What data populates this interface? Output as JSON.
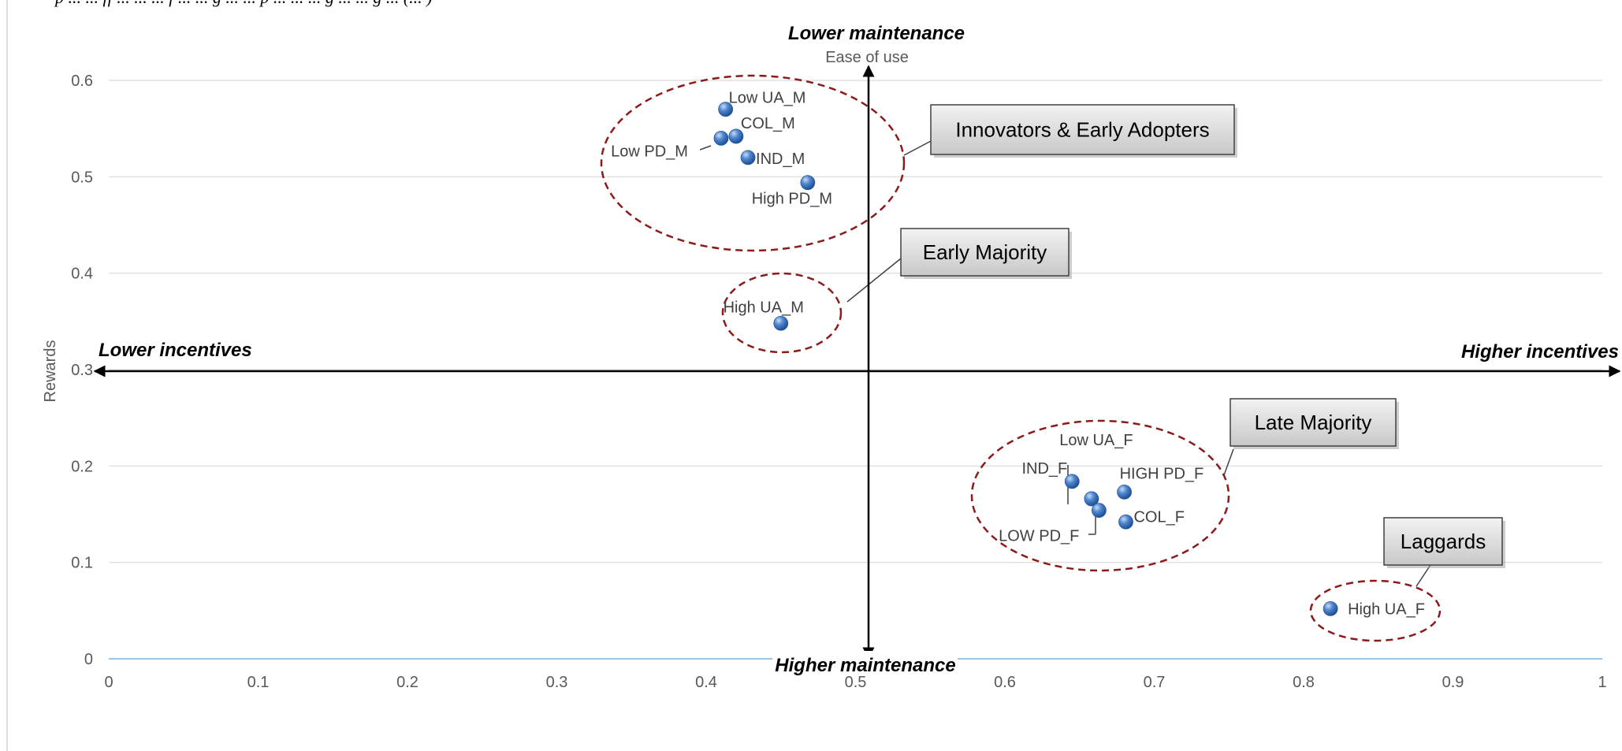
{
  "caption_top": "p ... ... ff ... ... ... f ... ... g ... ... p ... ... ... g ... ... g ... (... )",
  "chart_data": {
    "type": "scatter",
    "title": "",
    "xlabel": "",
    "ylabel": "Rewards",
    "xlim": [
      0,
      1
    ],
    "ylim": [
      0,
      0.6
    ],
    "x_ticks": [
      "0",
      "0.1",
      "0.2",
      "0.3",
      "0.4",
      "0.5",
      "0.6",
      "0.7",
      "0.8",
      "0.9",
      "1"
    ],
    "y_ticks": [
      "0",
      "0.1",
      "0.2",
      "0.3",
      "0.4",
      "0.5",
      "0.6"
    ],
    "grid": "horizontal",
    "series_color": "#3a72c4",
    "points": [
      {
        "label": "Low UA_M",
        "x": 0.413,
        "y": 0.57
      },
      {
        "label": "COL_M",
        "x": 0.42,
        "y": 0.542
      },
      {
        "label": "Low PD_M",
        "x": 0.41,
        "y": 0.54
      },
      {
        "label": "IND_M",
        "x": 0.428,
        "y": 0.52
      },
      {
        "label": "High PD_M",
        "x": 0.468,
        "y": 0.494
      },
      {
        "label": "High UA_M",
        "x": 0.45,
        "y": 0.348
      },
      {
        "label": "IND_F",
        "x": 0.645,
        "y": 0.184
      },
      {
        "label": "Low UA_F",
        "x": 0.658,
        "y": 0.166
      },
      {
        "label": "LOW PD_F",
        "x": 0.663,
        "y": 0.154
      },
      {
        "label": "HIGH PD_F",
        "x": 0.68,
        "y": 0.173
      },
      {
        "label": "COL_F",
        "x": 0.681,
        "y": 0.142
      },
      {
        "label": "High UA_F",
        "x": 0.818,
        "y": 0.052
      }
    ],
    "axis_labels": {
      "top": "Lower maintenance",
      "top_sub": "Ease of use",
      "bottom": "Higher maintenance",
      "left": "Lower incentives",
      "right": "Higher incentives"
    },
    "groups": [
      {
        "name": "Innovators & Early Adopters",
        "members": [
          "Low UA_M",
          "COL_M",
          "Low PD_M",
          "IND_M",
          "High PD_M"
        ]
      },
      {
        "name": "Early Majority",
        "members": [
          "High UA_M"
        ]
      },
      {
        "name": "Late Majority",
        "members": [
          "IND_F",
          "Low UA_F",
          "LOW PD_F",
          "HIGH PD_F",
          "COL_F"
        ]
      },
      {
        "name": "Laggards",
        "members": [
          "High UA_F"
        ]
      }
    ],
    "colors": {
      "ellipse": "#8b1a1a",
      "callout_fill": "#d9d9d9",
      "axis": "#000000",
      "gridline": "#d9d9d9",
      "baseline": "#9dc3e6"
    }
  }
}
